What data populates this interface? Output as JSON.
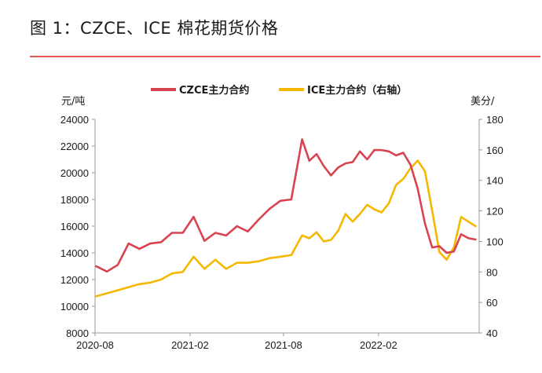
{
  "figure": {
    "title": "图 1：CZCE、ICE 棉花期货价格"
  },
  "chart_data": {
    "type": "line",
    "title": "",
    "x_ticks": [
      "2020-08",
      "2021-02",
      "2021-08",
      "2022-02"
    ],
    "y_left": {
      "unit": "元/吨",
      "ticks": [
        8000,
        10000,
        12000,
        14000,
        16000,
        18000,
        20000,
        22000,
        24000
      ],
      "lim": [
        8000,
        24000
      ]
    },
    "y_right": {
      "unit": "美分/",
      "ticks": [
        40,
        60,
        80,
        100,
        120,
        140,
        160,
        180
      ],
      "lim": [
        40,
        180
      ]
    },
    "grid": false,
    "legend_position": "top",
    "colors": {
      "czce": "#d9434f",
      "ice": "#f5b800",
      "rule": "#e05a5a"
    },
    "series": [
      {
        "name": "CZCE主力合约",
        "axis": "left",
        "x": [
          "2020-08-03",
          "2020-08-24",
          "2020-09-14",
          "2020-10-05",
          "2020-10-26",
          "2020-11-16",
          "2020-12-07",
          "2020-12-28",
          "2021-01-18",
          "2021-02-08",
          "2021-03-01",
          "2021-03-22",
          "2021-04-12",
          "2021-05-03",
          "2021-05-24",
          "2021-06-14",
          "2021-07-05",
          "2021-07-26",
          "2021-08-16",
          "2021-09-06",
          "2021-09-20",
          "2021-10-04",
          "2021-10-18",
          "2021-11-01",
          "2021-11-15",
          "2021-11-29",
          "2021-12-13",
          "2021-12-27",
          "2022-01-10",
          "2022-01-24",
          "2022-02-07",
          "2022-02-21",
          "2022-03-07",
          "2022-03-21",
          "2022-04-04",
          "2022-04-18",
          "2022-05-02",
          "2022-05-16",
          "2022-05-30",
          "2022-06-13",
          "2022-06-27",
          "2022-07-11",
          "2022-07-25",
          "2022-08-08"
        ],
        "y": [
          13000,
          12600,
          13100,
          14700,
          14300,
          14700,
          14800,
          15500,
          15500,
          16700,
          14900,
          15500,
          15300,
          16000,
          15600,
          16500,
          17300,
          17900,
          18000,
          22500,
          20900,
          21400,
          20500,
          19800,
          20400,
          20700,
          20800,
          21600,
          21000,
          21700,
          21700,
          21600,
          21300,
          21500,
          20600,
          18800,
          16200,
          14400,
          14500,
          14000,
          14100,
          15400,
          15100,
          15000
        ]
      },
      {
        "name": "ICE主力合约（右轴）",
        "axis": "right",
        "x": [
          "2020-08-03",
          "2020-08-24",
          "2020-09-14",
          "2020-10-05",
          "2020-10-26",
          "2020-11-16",
          "2020-12-07",
          "2020-12-28",
          "2021-01-18",
          "2021-02-08",
          "2021-03-01",
          "2021-03-22",
          "2021-04-12",
          "2021-05-03",
          "2021-05-24",
          "2021-06-14",
          "2021-07-05",
          "2021-07-26",
          "2021-08-16",
          "2021-09-06",
          "2021-09-20",
          "2021-10-04",
          "2021-10-18",
          "2021-11-01",
          "2021-11-15",
          "2021-11-29",
          "2021-12-13",
          "2021-12-27",
          "2022-01-10",
          "2022-01-24",
          "2022-02-07",
          "2022-02-21",
          "2022-03-07",
          "2022-03-21",
          "2022-04-04",
          "2022-04-18",
          "2022-05-02",
          "2022-05-16",
          "2022-05-30",
          "2022-06-13",
          "2022-06-27",
          "2022-07-11",
          "2022-07-25",
          "2022-08-08"
        ],
        "y": [
          64,
          66,
          68,
          70,
          72,
          73,
          75,
          79,
          80,
          90,
          82,
          88,
          82,
          86,
          86,
          87,
          89,
          90,
          91,
          104,
          102,
          106,
          100,
          101,
          107,
          118,
          113,
          118,
          124,
          121,
          119,
          125,
          137,
          141,
          148,
          153,
          146,
          120,
          93,
          88,
          96,
          116,
          113,
          110
        ]
      }
    ]
  }
}
